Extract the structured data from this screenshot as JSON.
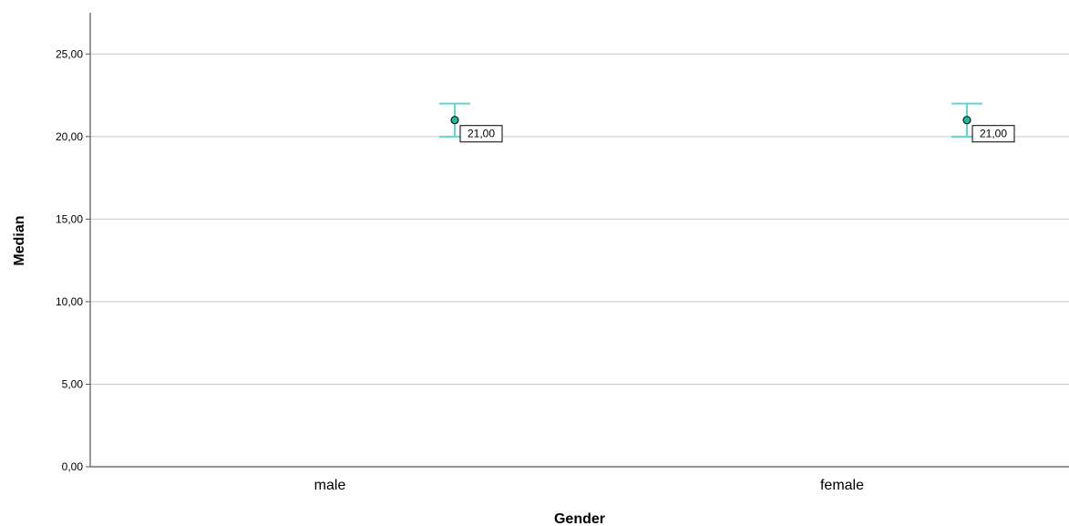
{
  "chart_data": {
    "type": "scatter",
    "categories": [
      "male",
      "female"
    ],
    "series": [
      {
        "values": [
          21.0,
          21.0
        ],
        "error_low": [
          20.0,
          20.0
        ],
        "error_high": [
          22.0,
          22.0
        ],
        "data_labels": [
          "21,00",
          "21,00"
        ]
      }
    ],
    "xlabel": "Gender",
    "ylabel": "Median",
    "ylim": [
      0,
      27.5
    ],
    "yticks": [
      0,
      5,
      10,
      15,
      20,
      25
    ],
    "ytick_labels": [
      "0,00",
      "5,00",
      "10,00",
      "15,00",
      "20,00",
      "25,00"
    ],
    "grid": true,
    "legend": "none"
  },
  "colors": {
    "point_fill": "#1abc9c",
    "point_stroke": "#1a1a1a",
    "error_bar": "#5fd6cf",
    "gridline": "#c8c8c8",
    "axis": "#555555"
  }
}
